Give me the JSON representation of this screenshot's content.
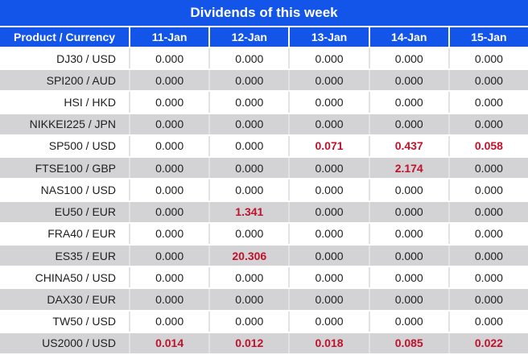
{
  "title": "Dividends of this week",
  "table": {
    "columns": [
      "Product / Currency",
      "11-Jan",
      "12-Jan",
      "13-Jan",
      "14-Jan",
      "15-Jan"
    ],
    "rows": [
      {
        "product": "DJ30 / USD",
        "values": [
          "0.000",
          "0.000",
          "0.000",
          "0.000",
          "0.000"
        ],
        "highlight": [
          false,
          false,
          false,
          false,
          false
        ]
      },
      {
        "product": "SPI200 / AUD",
        "values": [
          "0.000",
          "0.000",
          "0.000",
          "0.000",
          "0.000"
        ],
        "highlight": [
          false,
          false,
          false,
          false,
          false
        ]
      },
      {
        "product": "HSI / HKD",
        "values": [
          "0.000",
          "0.000",
          "0.000",
          "0.000",
          "0.000"
        ],
        "highlight": [
          false,
          false,
          false,
          false,
          false
        ]
      },
      {
        "product": "NIKKEI225 / JPN",
        "values": [
          "0.000",
          "0.000",
          "0.000",
          "0.000",
          "0.000"
        ],
        "highlight": [
          false,
          false,
          false,
          false,
          false
        ]
      },
      {
        "product": "SP500 / USD",
        "values": [
          "0.000",
          "0.000",
          "0.071",
          "0.437",
          "0.058"
        ],
        "highlight": [
          false,
          false,
          true,
          true,
          true
        ]
      },
      {
        "product": "FTSE100 / GBP",
        "values": [
          "0.000",
          "0.000",
          "0.000",
          "2.174",
          "0.000"
        ],
        "highlight": [
          false,
          false,
          false,
          true,
          false
        ]
      },
      {
        "product": "NAS100 / USD",
        "values": [
          "0.000",
          "0.000",
          "0.000",
          "0.000",
          "0.000"
        ],
        "highlight": [
          false,
          false,
          false,
          false,
          false
        ]
      },
      {
        "product": "EU50 / EUR",
        "values": [
          "0.000",
          "1.341",
          "0.000",
          "0.000",
          "0.000"
        ],
        "highlight": [
          false,
          true,
          false,
          false,
          false
        ]
      },
      {
        "product": "FRA40 / EUR",
        "values": [
          "0.000",
          "0.000",
          "0.000",
          "0.000",
          "0.000"
        ],
        "highlight": [
          false,
          false,
          false,
          false,
          false
        ]
      },
      {
        "product": "ES35 / EUR",
        "values": [
          "0.000",
          "20.306",
          "0.000",
          "0.000",
          "0.000"
        ],
        "highlight": [
          false,
          true,
          false,
          false,
          false
        ]
      },
      {
        "product": "CHINA50 / USD",
        "values": [
          "0.000",
          "0.000",
          "0.000",
          "0.000",
          "0.000"
        ],
        "highlight": [
          false,
          false,
          false,
          false,
          false
        ]
      },
      {
        "product": "DAX30 / EUR",
        "values": [
          "0.000",
          "0.000",
          "0.000",
          "0.000",
          "0.000"
        ],
        "highlight": [
          false,
          false,
          false,
          false,
          false
        ]
      },
      {
        "product": "TW50 / USD",
        "values": [
          "0.000",
          "0.000",
          "0.000",
          "0.000",
          "0.000"
        ],
        "highlight": [
          false,
          false,
          false,
          false,
          false
        ]
      },
      {
        "product": "US2000 / USD",
        "values": [
          "0.014",
          "0.012",
          "0.018",
          "0.085",
          "0.022"
        ],
        "highlight": [
          true,
          true,
          true,
          true,
          true
        ]
      }
    ]
  },
  "colors": {
    "accent_blue": "#1355E9",
    "row_alt_gray": "#D3D3D6",
    "separator_gray": "#E2E2E2",
    "text": "#202020",
    "highlight_red": "#C1122B"
  }
}
